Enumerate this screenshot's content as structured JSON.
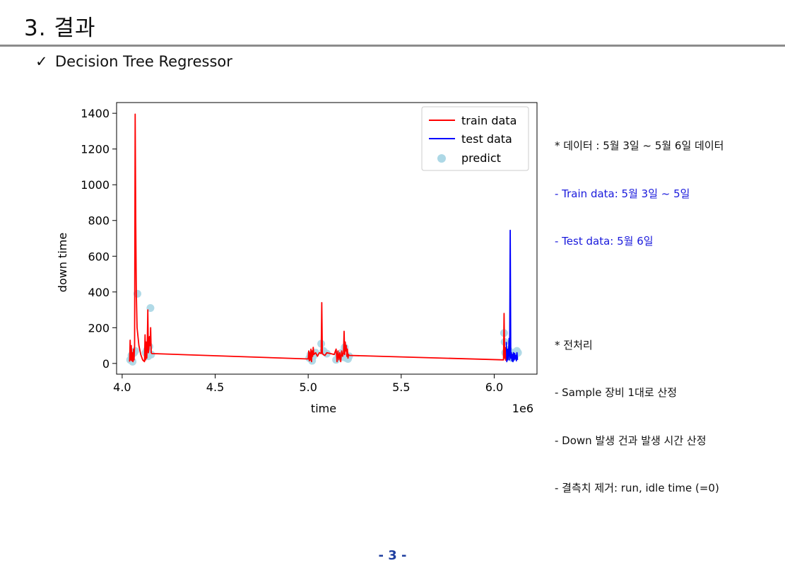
{
  "header": {
    "title": "3. 결과",
    "subtitle_check": "✓",
    "subtitle": "Decision Tree Regressor"
  },
  "notes": {
    "data_heading": "* 데이터 : 5월 3일 ~ 5월 6일 데이터",
    "data_items": [
      "- Train data: 5월 3일 ~ 5일",
      "- Test data: 5월 6일"
    ],
    "prep_heading": "* 전처리",
    "prep_items": [
      "- Sample 장비 1대로 산정",
      "- Down 발생 건과 발생 시간 산정",
      "- 결측치 제거: run, idle time (=0)"
    ]
  },
  "footer": {
    "page_number": "- 3 -"
  },
  "colors": {
    "train": "#ff0000",
    "test": "#0000ff",
    "predict": "#add8e6",
    "note_blue": "#1a1adc"
  },
  "chart_data": {
    "type": "line",
    "xlabel": "time",
    "ylabel": "down time",
    "x_offset_label": "1e6",
    "xlim": [
      3.97,
      6.23
    ],
    "ylim": [
      -60,
      1460
    ],
    "x_ticks": [
      "4.0",
      "4.5",
      "5.0",
      "5.5",
      "6.0"
    ],
    "x_tick_values": [
      4.0,
      4.5,
      5.0,
      5.5,
      6.0
    ],
    "y_ticks": [
      "0",
      "200",
      "400",
      "600",
      "800",
      "1000",
      "1200",
      "1400"
    ],
    "y_tick_values": [
      0,
      200,
      400,
      600,
      800,
      1000,
      1200,
      1400
    ],
    "legend_position": "top-right",
    "series": [
      {
        "name": "train data",
        "style": "line",
        "x": [
          4.04,
          4.043,
          4.046,
          4.049,
          4.052,
          4.055,
          4.058,
          4.061,
          4.064,
          4.067,
          4.07,
          4.073,
          4.076,
          4.08,
          4.09,
          4.1,
          4.11,
          4.12,
          4.123,
          4.126,
          4.129,
          4.132,
          4.135,
          4.138,
          4.141,
          4.144,
          4.147,
          4.15,
          4.153,
          4.156,
          4.16,
          5.0,
          5.003,
          5.006,
          5.009,
          5.012,
          5.015,
          5.018,
          5.021,
          5.024,
          5.027,
          5.03,
          5.04,
          5.05,
          5.06,
          5.07,
          5.073,
          5.076,
          5.08,
          5.09,
          5.1,
          5.12,
          5.14,
          5.15,
          5.155,
          5.16,
          5.165,
          5.17,
          5.175,
          5.18,
          5.185,
          5.19,
          5.193,
          5.196,
          5.199,
          5.202,
          5.205,
          5.208,
          5.211,
          5.214,
          5.217,
          5.22,
          6.05,
          6.053,
          6.056,
          6.059,
          6.062
        ],
        "y": [
          10,
          130,
          20,
          100,
          15,
          60,
          10,
          80,
          20,
          100,
          1395,
          800,
          400,
          200,
          100,
          50,
          20,
          10,
          160,
          20,
          120,
          30,
          100,
          300,
          60,
          80,
          150,
          100,
          200,
          60,
          55,
          25,
          70,
          15,
          60,
          20,
          80,
          10,
          70,
          40,
          90,
          50,
          60,
          40,
          60,
          55,
          340,
          60,
          50,
          45,
          60,
          55,
          50,
          80,
          10,
          70,
          20,
          60,
          10,
          70,
          40,
          60,
          180,
          50,
          120,
          70,
          100,
          40,
          80,
          30,
          50,
          45,
          20,
          280,
          30,
          90,
          15
        ]
      },
      {
        "name": "test data",
        "style": "line",
        "x": [
          6.065,
          6.068,
          6.071,
          6.074,
          6.077,
          6.08,
          6.083,
          6.086,
          6.089,
          6.092,
          6.095,
          6.098,
          6.101,
          6.104,
          6.107,
          6.11,
          6.113,
          6.116,
          6.119,
          6.122,
          6.125
        ],
        "y": [
          120,
          10,
          80,
          20,
          60,
          140,
          20,
          745,
          30,
          60,
          15,
          50,
          10,
          60,
          20,
          55,
          25,
          45,
          15,
          60,
          20
        ]
      },
      {
        "name": "predict",
        "style": "scatter",
        "x": [
          4.043,
          4.05,
          4.056,
          4.064,
          4.07,
          4.082,
          4.126,
          4.133,
          4.14,
          4.146,
          4.152,
          4.156,
          5.006,
          5.012,
          5.021,
          5.027,
          5.04,
          5.07,
          5.082,
          5.1,
          5.15,
          5.163,
          5.18,
          5.19,
          5.196,
          5.205,
          5.214,
          5.22,
          6.053,
          6.056,
          6.059,
          6.068,
          6.077,
          6.089,
          6.095,
          6.104,
          6.113,
          6.122,
          6.128
        ],
        "y": [
          20,
          45,
          10,
          60,
          70,
          390,
          60,
          75,
          40,
          95,
          310,
          50,
          30,
          50,
          15,
          40,
          60,
          110,
          70,
          55,
          20,
          50,
          60,
          35,
          90,
          30,
          25,
          40,
          170,
          120,
          60,
          40,
          75,
          50,
          30,
          60,
          45,
          70,
          60
        ]
      }
    ]
  }
}
